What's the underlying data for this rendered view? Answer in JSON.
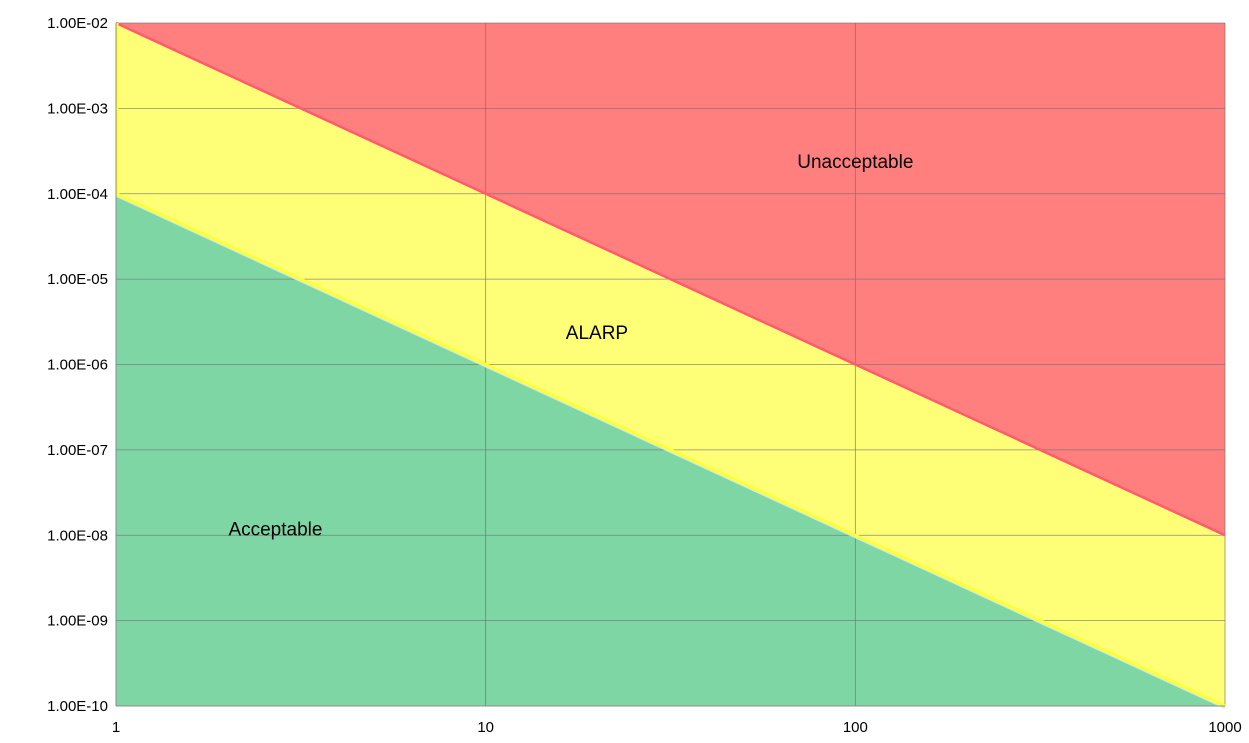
{
  "chart_data": {
    "type": "area",
    "title": "",
    "xlabel": "",
    "ylabel": "",
    "x_scale": "log",
    "y_scale": "log",
    "xlim": [
      1,
      1000
    ],
    "ylim": [
      1e-10,
      0.01
    ],
    "grid": true,
    "legend": "none",
    "x_tick_labels": [
      "1",
      "10",
      "100",
      "1000"
    ],
    "x_tick_values": [
      1,
      10,
      100,
      1000
    ],
    "y_tick_labels": [
      "1.00E-10",
      "1.00E-09",
      "1.00E-08",
      "1.00E-07",
      "1.00E-06",
      "1.00E-05",
      "1.00E-04",
      "1.00E-03",
      "1.00E-02"
    ],
    "y_tick_values": [
      1e-10,
      1e-09,
      1e-08,
      1e-07,
      1e-06,
      1e-05,
      0.0001,
      0.001,
      0.01
    ],
    "boundaries": {
      "upper": {
        "x": [
          1,
          1000
        ],
        "y": [
          0.01,
          1e-08
        ]
      },
      "lower": {
        "x": [
          1,
          1000
        ],
        "y": [
          0.0001,
          1e-10
        ]
      }
    },
    "regions": [
      {
        "label": "Unacceptable",
        "color": "#ff7f7f",
        "x": 100,
        "y": 0.0002
      },
      {
        "label": "ALARP",
        "color": "#ffff77",
        "x": 20,
        "y": 2e-06
      },
      {
        "label": "Acceptable",
        "color": "#7fd6a5",
        "x": 2.7,
        "y": 1e-08
      }
    ],
    "colors": {
      "grid": "#707070",
      "upper_line": "#ff5a6e",
      "lower_line": "#ffff33",
      "lower_line_glow": "#cfeee0"
    }
  }
}
